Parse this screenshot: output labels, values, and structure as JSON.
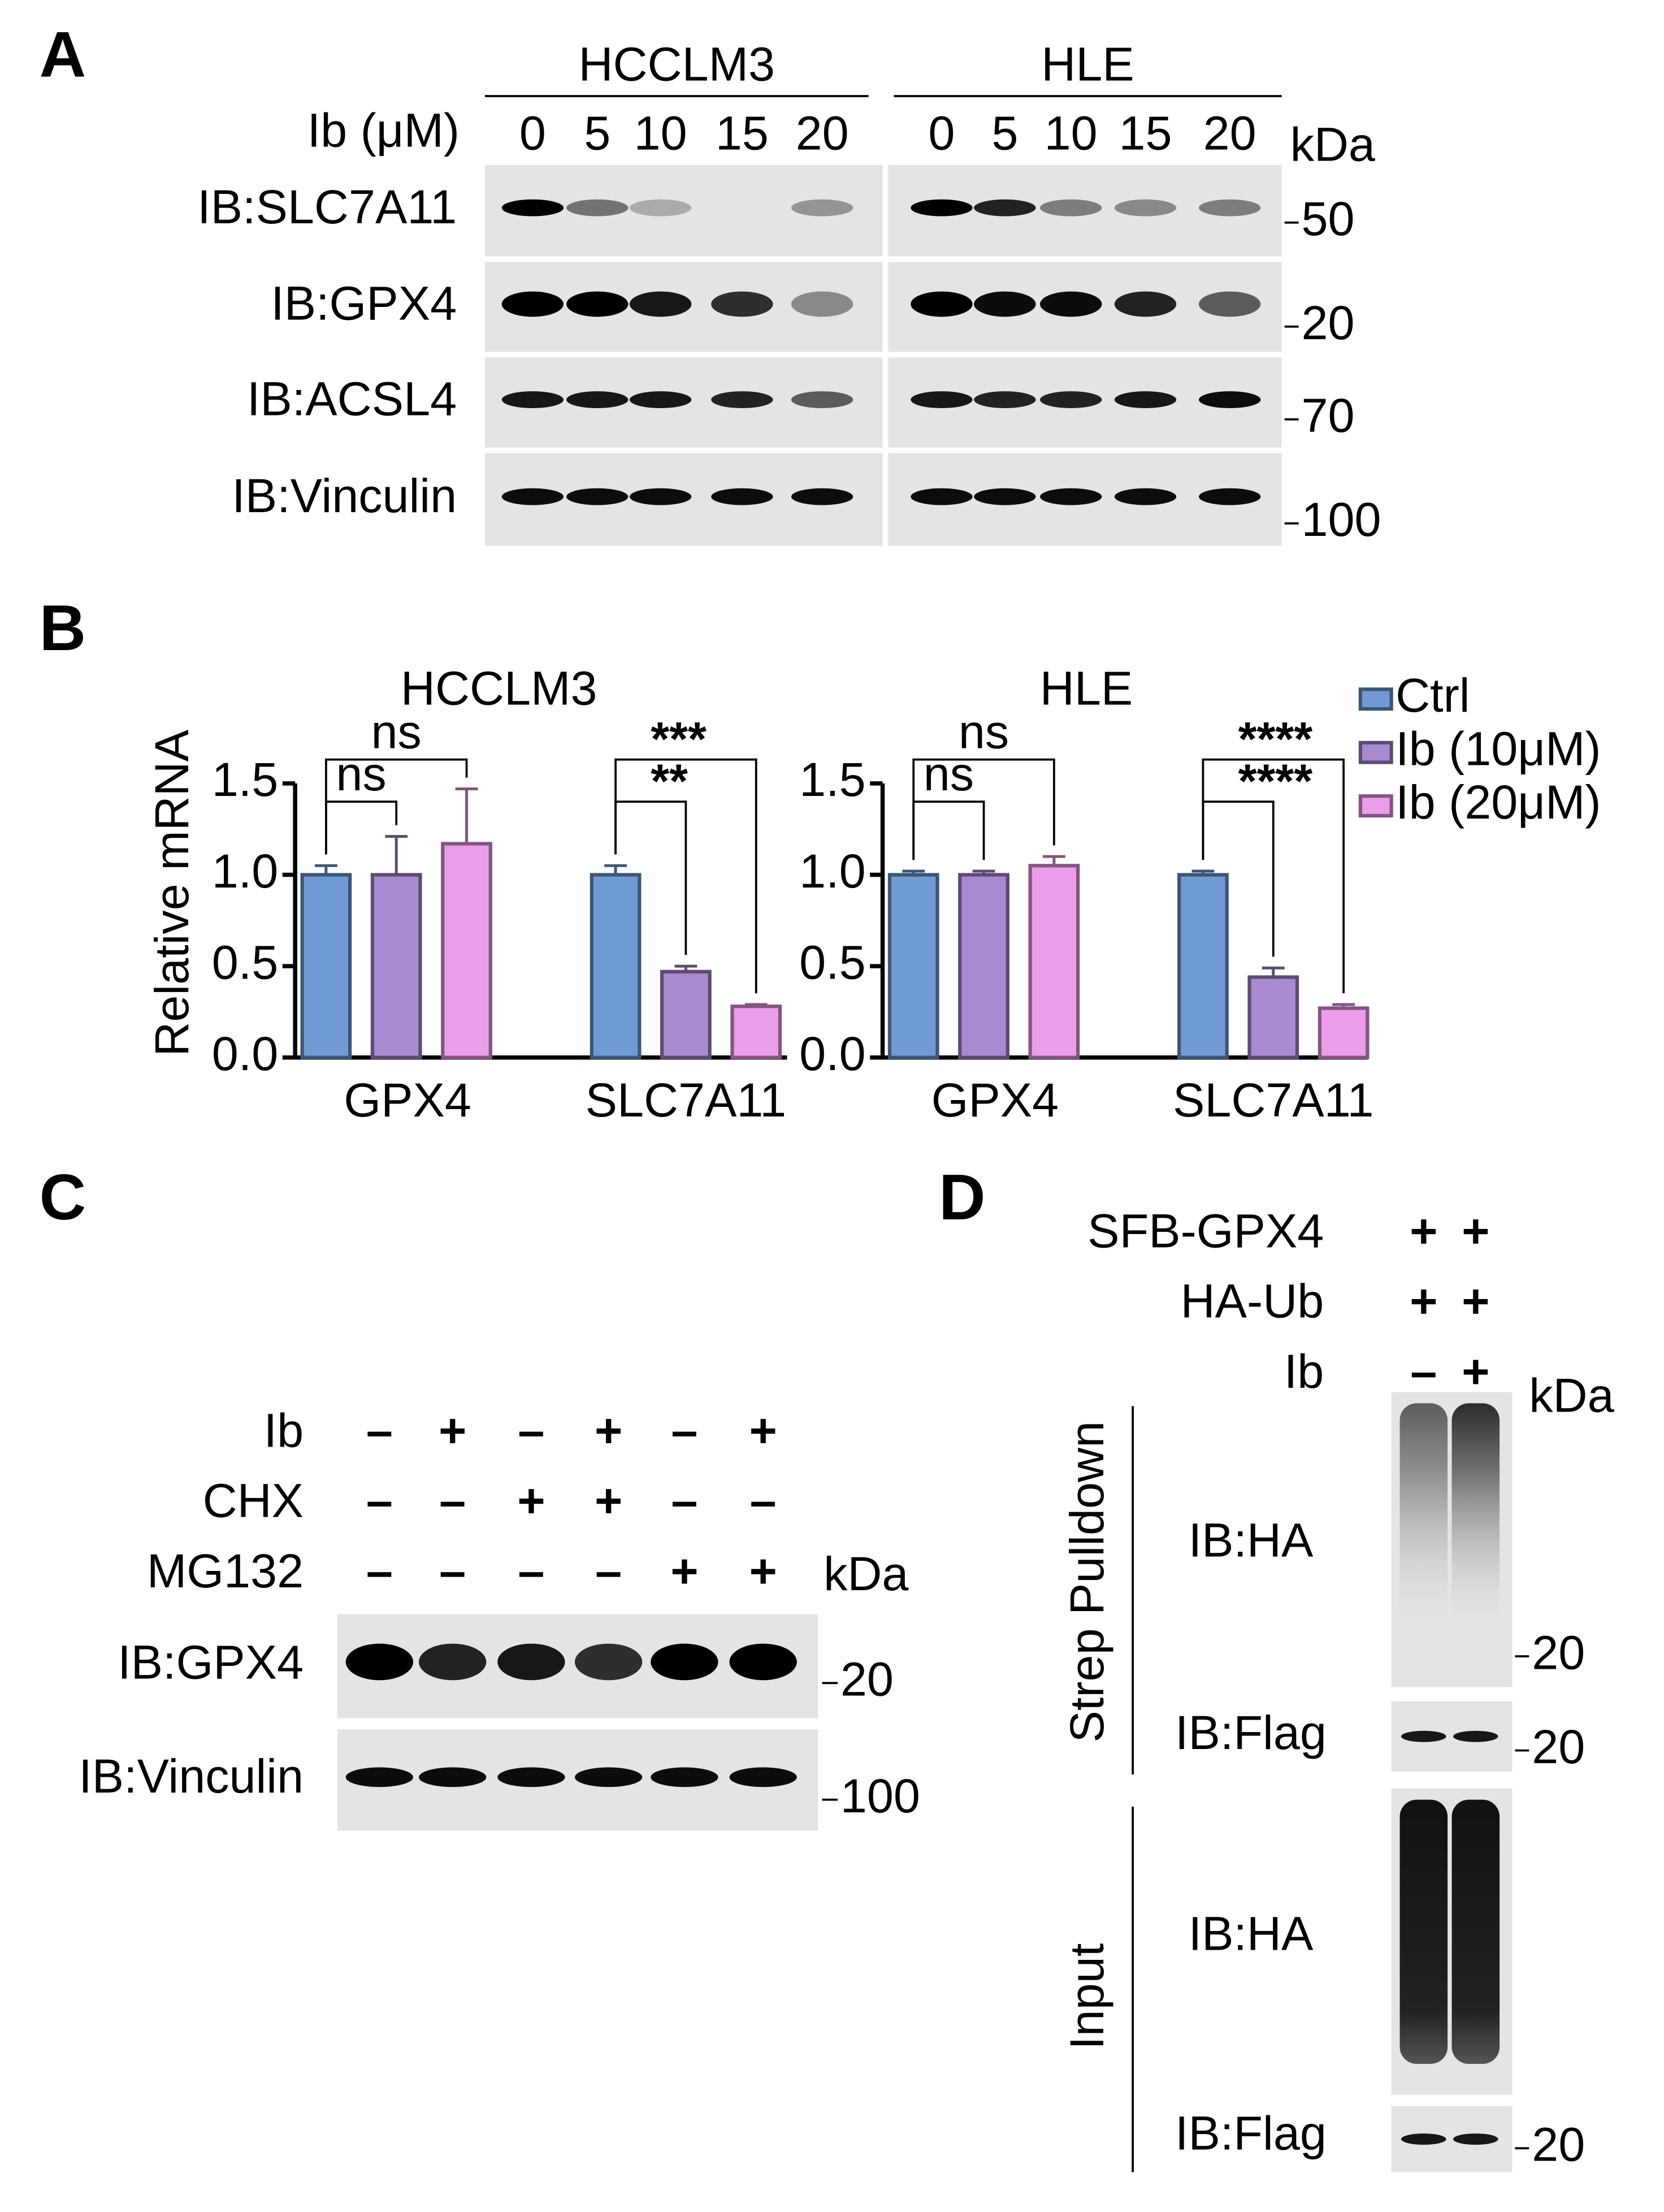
{
  "panel_a": {
    "label": "A",
    "dose_label": "Ib (μM)",
    "unit": "kDa",
    "groups": [
      {
        "name": "HCCLM3",
        "doses": [
          "0",
          "5",
          "10",
          "15",
          "20"
        ]
      },
      {
        "name": "HLE",
        "doses": [
          "0",
          "5",
          "10",
          "15",
          "20"
        ]
      }
    ],
    "blots": [
      {
        "label": "IB:SLC7A11",
        "marker": "50"
      },
      {
        "label": "IB:GPX4",
        "marker": "20"
      },
      {
        "label": "IB:ACSL4",
        "marker": "70"
      },
      {
        "label": "IB:Vinculin",
        "marker": "100"
      }
    ]
  },
  "chart_data": [
    {
      "type": "bar",
      "panel_label": "B",
      "title": "HCCLM3",
      "ylabel": "Relative mRNA",
      "categories": [
        "GPX4",
        "SLC7A11"
      ],
      "series": [
        {
          "name": "Ctrl",
          "color": "#709ad3",
          "values": [
            1.0,
            1.0
          ],
          "errors": [
            0.05,
            0.05
          ]
        },
        {
          "name": "Ib (10μM)",
          "color": "#a88ad0",
          "values": [
            1.0,
            0.47
          ],
          "errors": [
            0.21,
            0.03
          ]
        },
        {
          "name": "Ib (20μM)",
          "color": "#ea9de8",
          "values": [
            1.17,
            0.28
          ],
          "errors": [
            0.3,
            0.01
          ]
        }
      ],
      "ylim": [
        0,
        1.5
      ],
      "yticks": [
        {
          "value": 0,
          "label": "0.0"
        },
        0.5,
        {
          "value": 1,
          "label": "1.0"
        },
        1.5
      ],
      "significance": [
        "ns",
        "ns",
        "**",
        "***"
      ]
    },
    {
      "type": "bar",
      "title": "HLE",
      "categories": [
        "GPX4",
        "SLC7A11"
      ],
      "series": [
        {
          "color": "#709ad3",
          "values": [
            1.0,
            1.0
          ],
          "errors": [
            0.02,
            0.02
          ]
        },
        {
          "color": "#a88ad0",
          "values": [
            1.0,
            0.44
          ],
          "errors": [
            0.02,
            0.05
          ]
        },
        {
          "color": "#ea9de8",
          "values": [
            1.05,
            0.27
          ],
          "errors": [
            0.05,
            0.02
          ]
        }
      ],
      "ylim": [
        0,
        1.5
      ],
      "yticks": [
        {
          "value": 0,
          "label": "0.0"
        },
        0.5,
        {
          "value": 1,
          "label": "1.0"
        },
        1.5
      ],
      "significance": [
        "ns",
        "ns",
        "****",
        "****"
      ]
    }
  ],
  "panel_c": {
    "label": "C",
    "unit": "kDa",
    "treatments": [
      {
        "name": "Ib",
        "marks": [
          "–",
          "+",
          "–",
          "+",
          "–",
          "+"
        ]
      },
      {
        "name": "CHX",
        "marks": [
          "–",
          "–",
          "+",
          "+",
          "–",
          "–"
        ]
      },
      {
        "name": "MG132",
        "marks": [
          "–",
          "–",
          "–",
          "–",
          "+",
          "+"
        ]
      }
    ],
    "blots": [
      {
        "label": "IB:GPX4",
        "marker": "20"
      },
      {
        "label": "IB:Vinculin",
        "marker": "100"
      }
    ]
  },
  "panel_d": {
    "label": "D",
    "unit": "kDa",
    "conditions": [
      {
        "name": "SFB-GPX4",
        "marks": [
          "+",
          "+"
        ]
      },
      {
        "name": "HA-Ub",
        "marks": [
          "+",
          "+"
        ]
      },
      {
        "name": "Ib",
        "marks": [
          "–",
          "+"
        ]
      }
    ],
    "sections": [
      {
        "name": "Strep Pulldown",
        "blots": [
          {
            "label": "IB:HA",
            "marker": "20"
          },
          {
            "label": "IB:Flag",
            "marker": "20"
          }
        ]
      },
      {
        "name": "Input",
        "blots": [
          {
            "label": "IB:HA"
          },
          {
            "label": "IB:Flag",
            "marker": "20"
          }
        ]
      }
    ]
  }
}
